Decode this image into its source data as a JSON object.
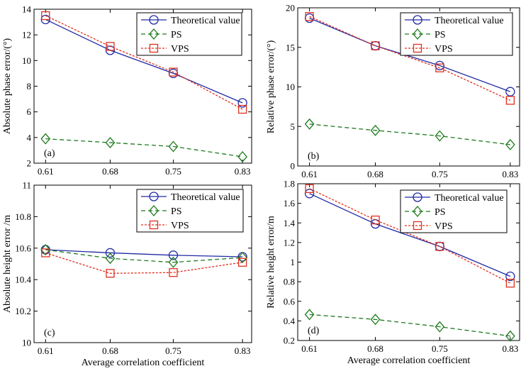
{
  "colors": {
    "theory": "#1f2aa3",
    "ps": "#1e7a1e",
    "vps": "#e0301e",
    "axis": "#000000"
  },
  "legend_labels": {
    "theory": "Theoretical value",
    "ps": "PS",
    "vps": "VPS"
  },
  "chart_data": [
    {
      "id": "a",
      "type": "line",
      "panel_label": "(a)",
      "ylabel": "Absolute phase error/(°)",
      "xlabel": "",
      "categories": [
        "0.61",
        "0.68",
        "0.75",
        "0.83"
      ],
      "ylim": [
        2,
        14
      ],
      "yticks": [
        2,
        4,
        6,
        8,
        10,
        12,
        14
      ],
      "ytick_labels": [
        "2",
        "4",
        "6",
        "8",
        "10",
        "12",
        "14"
      ],
      "legend": "top-right",
      "series": [
        {
          "key": "theory",
          "name": "Theoretical value",
          "values": [
            13.2,
            10.8,
            9.0,
            6.7
          ]
        },
        {
          "key": "ps",
          "name": "PS",
          "values": [
            3.9,
            3.6,
            3.3,
            2.5
          ]
        },
        {
          "key": "vps",
          "name": "VPS",
          "values": [
            13.5,
            11.1,
            9.1,
            6.2
          ]
        }
      ]
    },
    {
      "id": "b",
      "type": "line",
      "panel_label": "(b)",
      "ylabel": "Relative phase error/(°)",
      "xlabel": "",
      "categories": [
        "0.61",
        "0.68",
        "0.75",
        "0.83"
      ],
      "ylim": [
        0,
        20
      ],
      "yticks": [
        0,
        5,
        10,
        15,
        20
      ],
      "ytick_labels": [
        "0",
        "5",
        "10",
        "15",
        "20"
      ],
      "legend": "top-right",
      "series": [
        {
          "key": "theory",
          "name": "Theoretical value",
          "values": [
            18.7,
            15.2,
            12.7,
            9.4
          ]
        },
        {
          "key": "ps",
          "name": "PS",
          "values": [
            5.3,
            4.5,
            3.8,
            2.7
          ]
        },
        {
          "key": "vps",
          "name": "VPS",
          "values": [
            18.9,
            15.2,
            12.4,
            8.3
          ]
        }
      ]
    },
    {
      "id": "c",
      "type": "line",
      "panel_label": "(c)",
      "ylabel": "Absolute height error /m",
      "xlabel": "Average correlation coefficient",
      "categories": [
        "0.61",
        "0.68",
        "0.75",
        "0.83"
      ],
      "ylim": [
        10,
        11
      ],
      "yticks": [
        10,
        10.2,
        10.4,
        10.6,
        10.8,
        11
      ],
      "ytick_labels": [
        "10",
        "10.2",
        "10.4",
        "10.6",
        "10.8",
        "11"
      ],
      "legend": "top-right",
      "series": [
        {
          "key": "theory",
          "name": "Theoretical value",
          "values": [
            10.59,
            10.57,
            10.555,
            10.545
          ]
        },
        {
          "key": "ps",
          "name": "PS",
          "values": [
            10.59,
            10.535,
            10.51,
            10.54
          ]
        },
        {
          "key": "vps",
          "name": "VPS",
          "values": [
            10.57,
            10.44,
            10.445,
            10.51
          ]
        }
      ]
    },
    {
      "id": "d",
      "type": "line",
      "panel_label": "(d)",
      "ylabel": "Relative height error/m",
      "xlabel": "Average correlation coefficient",
      "categories": [
        "0.61",
        "0.68",
        "0.75",
        "0.83"
      ],
      "ylim": [
        0.2,
        1.8
      ],
      "yticks": [
        0.2,
        0.4,
        0.6,
        0.8,
        1.0,
        1.2,
        1.4,
        1.6,
        1.8
      ],
      "ytick_labels": [
        "0.2",
        "0.4",
        "0.6",
        "0.8",
        "1",
        "1.2",
        "1.4",
        "1.6",
        "1.8"
      ],
      "legend": "top-right",
      "series": [
        {
          "key": "theory",
          "name": "Theoretical value",
          "values": [
            1.7,
            1.39,
            1.16,
            0.855
          ]
        },
        {
          "key": "ps",
          "name": "PS",
          "values": [
            0.465,
            0.415,
            0.34,
            0.245
          ]
        },
        {
          "key": "vps",
          "name": "VPS",
          "values": [
            1.75,
            1.43,
            1.16,
            0.785
          ]
        }
      ]
    }
  ]
}
